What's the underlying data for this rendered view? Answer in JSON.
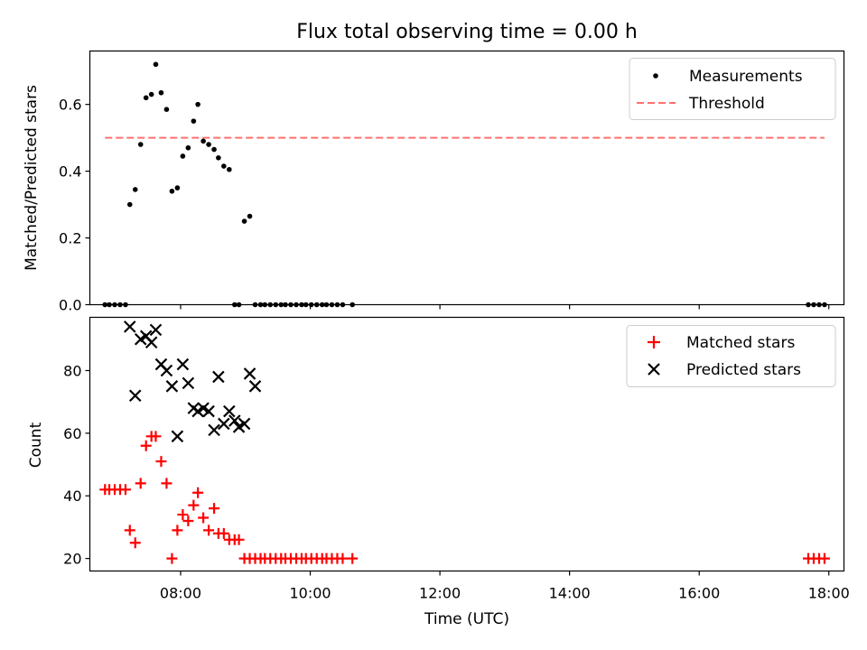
{
  "chart_data": [
    {
      "type": "scatter",
      "title": "Flux total observing time = 0.00 h",
      "xlabel": "",
      "ylabel": "Matched/Predicted stars",
      "x_unit": "time UTC",
      "xlim": [
        "06:36",
        "18:14"
      ],
      "ylim": [
        0,
        0.76
      ],
      "yticks": [
        "0.0",
        "0.2",
        "0.4",
        "0.6"
      ],
      "grid": false,
      "legend_position": "upper right",
      "series": [
        {
          "name": "Measurements",
          "style": "dot",
          "color": "#000000",
          "x": [
            "06:50",
            "06:54",
            "06:59",
            "07:04",
            "07:09",
            "07:13",
            "07:18",
            "07:23",
            "07:28",
            "07:33",
            "07:37",
            "07:42",
            "07:47",
            "07:52",
            "07:57",
            "08:02",
            "08:07",
            "08:12",
            "08:16",
            "08:21",
            "08:26",
            "08:31",
            "08:35",
            "08:40",
            "08:45",
            "08:50",
            "08:54",
            "08:59",
            "09:04",
            "09:09",
            "09:14",
            "09:18",
            "09:23",
            "09:28",
            "09:33",
            "09:37",
            "09:42",
            "09:47",
            "09:52",
            "09:56",
            "10:01",
            "10:06",
            "10:11",
            "10:15",
            "10:20",
            "10:25",
            "10:30",
            "10:39",
            "17:41",
            "17:46",
            "17:51",
            "17:56"
          ],
          "y": [
            0,
            0,
            0,
            0,
            0,
            0.3,
            0.345,
            0.48,
            0.62,
            0.63,
            0.72,
            0.635,
            0.585,
            0.34,
            0.35,
            0.445,
            0.47,
            0.55,
            0.6,
            0.49,
            0.48,
            0.465,
            0.44,
            0.415,
            0.405,
            0,
            0,
            0.25,
            0.265,
            0,
            0,
            0,
            0,
            0,
            0,
            0,
            0,
            0,
            0,
            0,
            0,
            0,
            0,
            0,
            0,
            0,
            0,
            0,
            0,
            0,
            0,
            0
          ]
        },
        {
          "name": "Threshold",
          "style": "dashed-line",
          "color": "#ff7070",
          "x": [
            "06:50",
            "17:56"
          ],
          "y": [
            0.5,
            0.5
          ]
        }
      ]
    },
    {
      "type": "scatter",
      "title": "",
      "xlabel": "Time (UTC)",
      "ylabel": "Count",
      "x_unit": "time UTC",
      "xlim": [
        "06:36",
        "18:14"
      ],
      "ylim": [
        16,
        97
      ],
      "yticks": [
        "20",
        "40",
        "60",
        "80"
      ],
      "xticks": [
        "08:00",
        "10:00",
        "12:00",
        "14:00",
        "16:00",
        "18:00"
      ],
      "grid": false,
      "legend_position": "upper right",
      "series": [
        {
          "name": "Matched stars",
          "marker": "plus",
          "color": "#ff0000",
          "x": [
            "06:50",
            "06:54",
            "06:59",
            "07:04",
            "07:09",
            "07:13",
            "07:18",
            "07:23",
            "07:28",
            "07:33",
            "07:37",
            "07:42",
            "07:47",
            "07:52",
            "07:57",
            "08:02",
            "08:07",
            "08:12",
            "08:16",
            "08:21",
            "08:26",
            "08:31",
            "08:35",
            "08:40",
            "08:45",
            "08:50",
            "08:54",
            "08:59",
            "09:04",
            "09:09",
            "09:14",
            "09:18",
            "09:23",
            "09:28",
            "09:33",
            "09:37",
            "09:42",
            "09:47",
            "09:52",
            "09:56",
            "10:01",
            "10:06",
            "10:11",
            "10:15",
            "10:20",
            "10:25",
            "10:30",
            "10:39",
            "17:41",
            "17:46",
            "17:51",
            "17:56"
          ],
          "y": [
            42,
            42,
            42,
            42,
            42,
            29,
            25,
            44,
            56,
            59,
            59,
            51,
            44,
            20,
            29,
            34,
            32,
            37,
            41,
            33,
            29,
            36,
            28,
            28,
            26,
            26,
            26,
            20,
            20,
            20,
            20,
            20,
            20,
            20,
            20,
            20,
            20,
            20,
            20,
            20,
            20,
            20,
            20,
            20,
            20,
            20,
            20,
            20,
            20,
            20,
            20,
            20
          ]
        },
        {
          "name": "Predicted stars",
          "marker": "x",
          "color": "#000000",
          "x": [
            "07:13",
            "07:18",
            "07:23",
            "07:28",
            "07:33",
            "07:37",
            "07:42",
            "07:47",
            "07:52",
            "07:57",
            "08:02",
            "08:07",
            "08:12",
            "08:16",
            "08:21",
            "08:26",
            "08:31",
            "08:35",
            "08:40",
            "08:45",
            "08:50",
            "08:54",
            "08:59",
            "09:04",
            "09:09"
          ],
          "y": [
            94,
            72,
            90,
            91,
            89,
            93,
            82,
            80,
            75,
            59,
            82,
            76,
            68,
            67,
            68,
            67,
            61,
            78,
            63,
            67,
            64,
            62,
            63,
            79,
            75
          ]
        }
      ]
    }
  ]
}
